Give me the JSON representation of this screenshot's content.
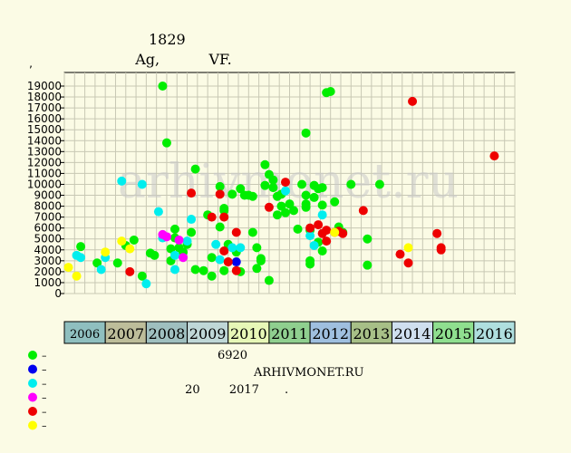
{
  "title": "ﾠﾠﾠﾠ 1829",
  "subtitle": "ﾠﾠﾠ Ag, ﾠﾠﾠ VF.",
  "ylabel": "ﾠﾠ, ﾠﾠ",
  "watermark": "arhivmonet.ru",
  "legend": [
    {
      "label": "– ﾠﾠﾠ",
      "color": "#00ee00"
    },
    {
      "label": "– ﾠﾠﾠ",
      "color": "#0000ee"
    },
    {
      "label": "– ﾠﾠﾠ",
      "color": "#00eeee"
    },
    {
      "label": "– ﾠﾠﾠﾠ",
      "color": "#ff00ff"
    },
    {
      "label": "– ﾠﾠﾠﾠﾠﾠ",
      "color": "#ee0000"
    },
    {
      "label": "– ﾠﾠ",
      "color": "#ffff00"
    }
  ],
  "info": [
    "ﾠﾠﾠﾠﾠ ﾠﾠ 6920 ﾠﾠ",
    "ﾠ ﾠﾠﾠﾠﾠﾠ ﾠﾠﾠ ARHIVMONET.RU",
    "ﾠﾠﾠ ﾠ 20 ﾠﾠ 2017 ﾠﾠ."
  ],
  "chart_data": {
    "type": "scatter",
    "ylim": [
      0,
      20000
    ],
    "yticks": [
      0,
      1000,
      2000,
      3000,
      4000,
      5000,
      6000,
      7000,
      8000,
      9000,
      10000,
      11000,
      12000,
      13000,
      14000,
      15000,
      16000,
      17000,
      18000,
      19000
    ],
    "grid": true,
    "xlim": [
      2006.0,
      2017.0
    ],
    "years": [
      {
        "label": "2006",
        "color": "#8fbfbf"
      },
      {
        "label": "2007",
        "color": "#bdbd9a"
      },
      {
        "label": "2008",
        "color": "#9fbfbf"
      },
      {
        "label": "2009",
        "color": "#bfd7d7"
      },
      {
        "label": "2010",
        "color": "#e7f7b7"
      },
      {
        "label": "2011",
        "color": "#8fcf8f"
      },
      {
        "label": "2012",
        "color": "#9fbfdf"
      },
      {
        "label": "2013",
        "color": "#a7bf87"
      },
      {
        "label": "2014",
        "color": "#cfdfef"
      },
      {
        "label": "2015",
        "color": "#8fdf8f"
      },
      {
        "label": "2016",
        "color": "#afdfdf"
      }
    ],
    "quarter_labels": [
      "ﾠﾠ",
      "ﾠﾠ",
      "ﾠﾠ",
      "ﾠﾠ"
    ],
    "series": [
      {
        "color": "#00ee00",
        "points": [
          [
            2006.4,
            4300
          ],
          [
            2006.8,
            2800
          ],
          [
            2007.3,
            2800
          ],
          [
            2007.5,
            4400
          ],
          [
            2007.7,
            4900
          ],
          [
            2007.9,
            1600
          ],
          [
            2008.1,
            3700
          ],
          [
            2008.2,
            3500
          ],
          [
            2008.4,
            19000
          ],
          [
            2008.5,
            13800
          ],
          [
            2008.6,
            4100
          ],
          [
            2008.6,
            3000
          ],
          [
            2008.7,
            5900
          ],
          [
            2008.7,
            5100
          ],
          [
            2008.8,
            4200
          ],
          [
            2008.9,
            3800
          ],
          [
            2009.0,
            4500
          ],
          [
            2009.1,
            5600
          ],
          [
            2009.2,
            2200
          ],
          [
            2009.2,
            11400
          ],
          [
            2009.4,
            2100
          ],
          [
            2009.5,
            7200
          ],
          [
            2009.6,
            1600
          ],
          [
            2009.6,
            3300
          ],
          [
            2009.8,
            9800
          ],
          [
            2009.8,
            6100
          ],
          [
            2009.9,
            7600
          ],
          [
            2009.9,
            7800
          ],
          [
            2009.9,
            2100
          ],
          [
            2010.0,
            4500
          ],
          [
            2010.1,
            9100
          ],
          [
            2010.2,
            3800
          ],
          [
            2010.3,
            9600
          ],
          [
            2010.3,
            2000
          ],
          [
            2010.4,
            9000
          ],
          [
            2010.5,
            9000
          ],
          [
            2010.6,
            8900
          ],
          [
            2010.6,
            5600
          ],
          [
            2010.7,
            4200
          ],
          [
            2010.7,
            2300
          ],
          [
            2010.8,
            3200
          ],
          [
            2010.8,
            3000
          ],
          [
            2010.9,
            9900
          ],
          [
            2010.9,
            11800
          ],
          [
            2011.0,
            10900
          ],
          [
            2011.0,
            1200
          ],
          [
            2011.1,
            10400
          ],
          [
            2011.1,
            9700
          ],
          [
            2011.2,
            8900
          ],
          [
            2011.2,
            7200
          ],
          [
            2011.3,
            8000
          ],
          [
            2011.3,
            9100
          ],
          [
            2011.4,
            7400
          ],
          [
            2011.5,
            8200
          ],
          [
            2011.6,
            7600
          ],
          [
            2011.7,
            5900
          ],
          [
            2011.8,
            10000
          ],
          [
            2011.9,
            14700
          ],
          [
            2011.9,
            9000
          ],
          [
            2011.9,
            8200
          ],
          [
            2011.9,
            7900
          ],
          [
            2012.0,
            2700
          ],
          [
            2012.0,
            3000
          ],
          [
            2012.0,
            5800
          ],
          [
            2012.1,
            9900
          ],
          [
            2012.1,
            8800
          ],
          [
            2012.2,
            9600
          ],
          [
            2012.2,
            4700
          ],
          [
            2012.3,
            9700
          ],
          [
            2012.3,
            8100
          ],
          [
            2012.3,
            3900
          ],
          [
            2012.4,
            18400
          ],
          [
            2012.5,
            18500
          ],
          [
            2012.6,
            8400
          ],
          [
            2012.7,
            6100
          ],
          [
            2012.8,
            5600
          ],
          [
            2013.0,
            10000
          ],
          [
            2013.4,
            5000
          ],
          [
            2013.4,
            2600
          ],
          [
            2013.7,
            10000
          ]
        ]
      },
      {
        "color": "#0000ee",
        "points": [
          [
            2010.2,
            2900
          ]
        ]
      },
      {
        "color": "#00eeee",
        "points": [
          [
            2006.3,
            3500
          ],
          [
            2006.4,
            3300
          ],
          [
            2006.9,
            2200
          ],
          [
            2007.0,
            3300
          ],
          [
            2007.4,
            10300
          ],
          [
            2007.9,
            10000
          ],
          [
            2008.0,
            900
          ],
          [
            2008.3,
            7500
          ],
          [
            2008.4,
            5100
          ],
          [
            2008.7,
            3500
          ],
          [
            2008.7,
            2200
          ],
          [
            2009.0,
            4800
          ],
          [
            2009.1,
            6800
          ],
          [
            2009.7,
            4500
          ],
          [
            2009.8,
            3100
          ],
          [
            2010.1,
            4200
          ],
          [
            2010.3,
            4200
          ],
          [
            2011.4,
            9400
          ],
          [
            2012.0,
            5300
          ],
          [
            2012.1,
            4400
          ],
          [
            2012.3,
            7200
          ]
        ]
      },
      {
        "color": "#ff00ff",
        "points": [
          [
            2008.4,
            5400
          ],
          [
            2008.5,
            5200
          ],
          [
            2008.8,
            4900
          ],
          [
            2008.9,
            3300
          ]
        ]
      },
      {
        "color": "#ee0000",
        "points": [
          [
            2007.6,
            2000
          ],
          [
            2009.1,
            9200
          ],
          [
            2009.6,
            7000
          ],
          [
            2009.8,
            9100
          ],
          [
            2009.9,
            3900
          ],
          [
            2009.9,
            7000
          ],
          [
            2010.0,
            2900
          ],
          [
            2010.2,
            5600
          ],
          [
            2010.2,
            2100
          ],
          [
            2011.0,
            7900
          ],
          [
            2011.4,
            10200
          ],
          [
            2012.0,
            6000
          ],
          [
            2012.2,
            6300
          ],
          [
            2012.3,
            5500
          ],
          [
            2012.4,
            5800
          ],
          [
            2012.4,
            4800
          ],
          [
            2012.6,
            5600
          ],
          [
            2012.7,
            5700
          ],
          [
            2012.8,
            5500
          ],
          [
            2013.3,
            7600
          ],
          [
            2014.2,
            3600
          ],
          [
            2014.4,
            2800
          ],
          [
            2014.5,
            17600
          ],
          [
            2015.1,
            5500
          ],
          [
            2015.2,
            4000
          ],
          [
            2015.2,
            4200
          ],
          [
            2016.5,
            12600
          ]
        ]
      },
      {
        "color": "#ffff00",
        "points": [
          [
            2006.1,
            2400
          ],
          [
            2006.3,
            1600
          ],
          [
            2007.0,
            3800
          ],
          [
            2007.4,
            4800
          ],
          [
            2007.6,
            4100
          ],
          [
            2012.6,
            5600
          ],
          [
            2014.4,
            4200
          ]
        ]
      }
    ]
  }
}
